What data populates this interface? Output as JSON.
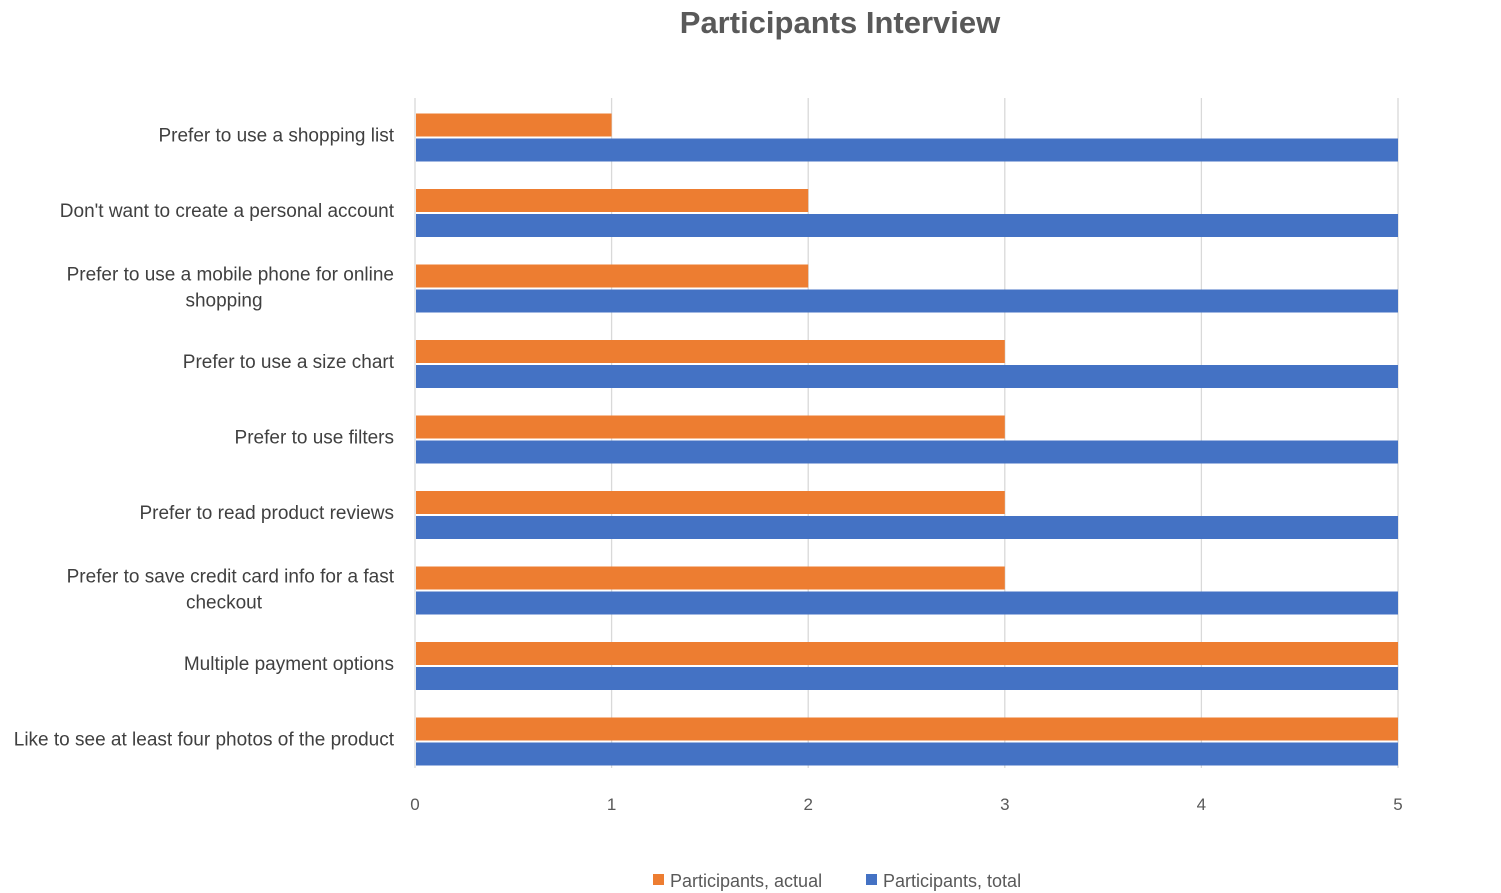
{
  "chart_data": {
    "type": "bar",
    "orientation": "horizontal",
    "title": "Participants Interview",
    "xlabel": "",
    "ylabel": "",
    "xlim": [
      0,
      5
    ],
    "x_ticks": [
      "0",
      "1",
      "2",
      "3",
      "4",
      "5"
    ],
    "grid": true,
    "legend_position": "bottom",
    "categories": [
      [
        "Prefer to use a shopping list"
      ],
      [
        "Don't want to create a personal account"
      ],
      [
        "Prefer to use a mobile phone for online",
        "shopping"
      ],
      [
        "Prefer to use a size chart"
      ],
      [
        "Prefer to use filters"
      ],
      [
        "Prefer to read product reviews"
      ],
      [
        "Prefer to save credit card info  for a fast",
        "checkout"
      ],
      [
        "Multiple payment options"
      ],
      [
        "Like to see at least four photos of the product"
      ]
    ],
    "series": [
      {
        "name": "Participants, actual",
        "color": "#ed7d31",
        "values": [
          1,
          2,
          2,
          3,
          3,
          3,
          3,
          5,
          5
        ]
      },
      {
        "name": "Participants, total",
        "color": "#4472c4",
        "values": [
          5,
          5,
          5,
          5,
          5,
          5,
          5,
          5,
          5
        ]
      }
    ]
  }
}
